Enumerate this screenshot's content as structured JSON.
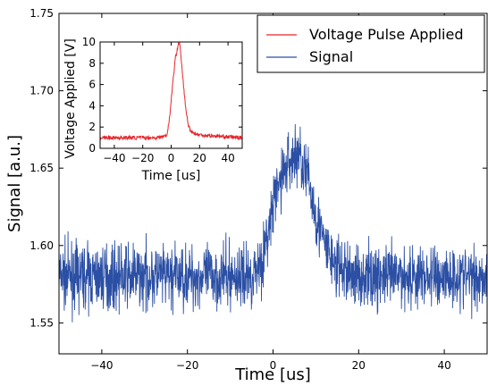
{
  "colors": {
    "signal": "#2b4fa4",
    "pulse": "#e8252a"
  },
  "chart_data": [
    {
      "type": "line",
      "role": "main",
      "xlabel": "Time [us]",
      "ylabel": "Signal [a.u.]",
      "xlim": [
        -50,
        50
      ],
      "ylim": [
        1.53,
        1.75
      ],
      "xticks": [
        -40,
        -20,
        0,
        20,
        40
      ],
      "xtick_labels": [
        "−40",
        "−20",
        "0",
        "20",
        "40"
      ],
      "yticks": [
        1.55,
        1.6,
        1.65,
        1.7,
        1.75
      ],
      "ytick_labels": [
        "1.55",
        "1.60",
        "1.65",
        "1.70",
        "1.75"
      ],
      "legend": {
        "placement": "top-right",
        "entries": [
          "Voltage Pulse Applied",
          "Signal"
        ]
      },
      "series": [
        {
          "name": "Signal",
          "color": "#2b4fa4",
          "description_points": {
            "x": [
              -50,
              -5,
              -2,
              0,
              2,
              4,
              6,
              8,
              10,
              12,
              15,
              20,
              50
            ],
            "y": [
              1.58,
              1.58,
              1.595,
              1.625,
              1.645,
              1.655,
              1.66,
              1.645,
              1.62,
              1.6,
              1.585,
              1.58,
              1.58
            ]
          },
          "noise_amplitude": 0.02
        }
      ]
    },
    {
      "type": "line",
      "role": "inset",
      "xlabel": "Time [us]",
      "ylabel": "Voltage Applied [V]",
      "xlim": [
        -50,
        50
      ],
      "ylim": [
        0,
        10
      ],
      "xticks": [
        -40,
        -20,
        0,
        20,
        40
      ],
      "xtick_labels": [
        "−40",
        "−20",
        "0",
        "20",
        "40"
      ],
      "yticks": [
        0,
        2,
        4,
        6,
        8,
        10
      ],
      "ytick_labels": [
        "0",
        "2",
        "4",
        "6",
        "8",
        "10"
      ],
      "series": [
        {
          "name": "Voltage Pulse Applied",
          "color": "#e8252a",
          "x": [
            -50,
            -10,
            -3,
            -1,
            1,
            3,
            5,
            6,
            8,
            10,
            12,
            14,
            18,
            25,
            50
          ],
          "y": [
            1.0,
            1.0,
            1.2,
            3.0,
            6.0,
            8.5,
            9.8,
            9.9,
            7.0,
            4.0,
            2.2,
            1.6,
            1.3,
            1.2,
            1.0
          ]
        }
      ]
    }
  ]
}
